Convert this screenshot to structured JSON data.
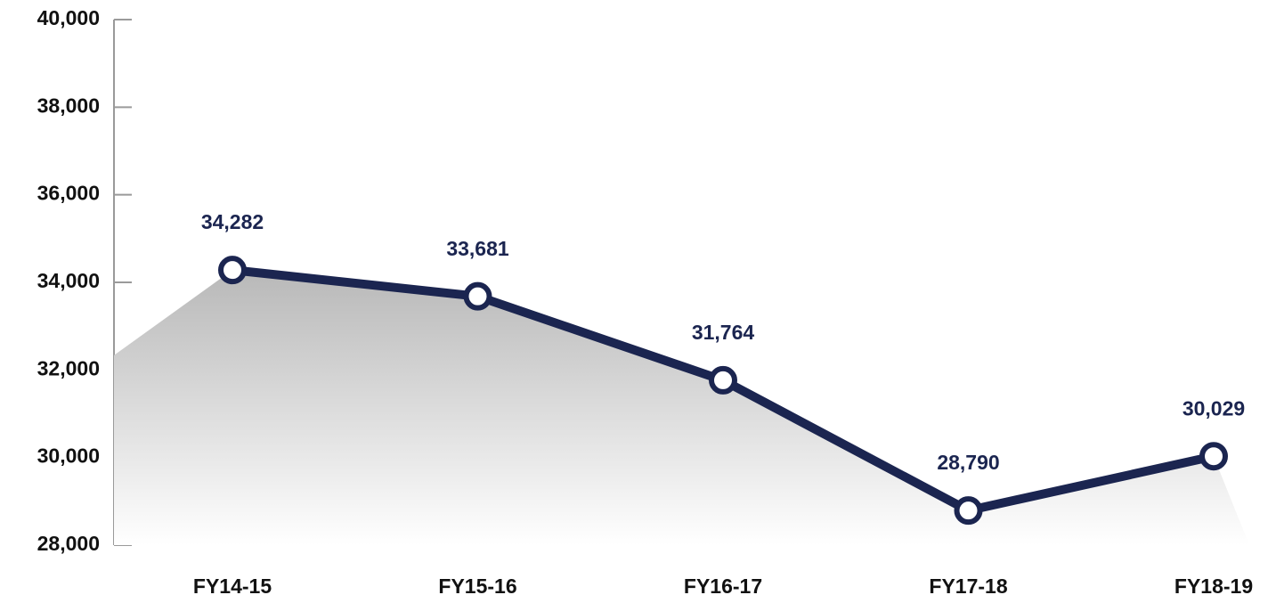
{
  "chart_data": {
    "type": "line",
    "categories": [
      "FY14-15",
      "FY15-16",
      "FY16-17",
      "FY17-18",
      "FY18-19"
    ],
    "series": [
      {
        "name": "Value",
        "color": "#1b2550",
        "values": [
          34282,
          33681,
          31764,
          28790,
          30029
        ],
        "value_labels": [
          "34,282",
          "33,681",
          "31,764",
          "28,790",
          "30,029"
        ]
      }
    ],
    "ylim": [
      28000,
      40000
    ],
    "yticks": [
      {
        "value": 28000,
        "label": "28,000"
      },
      {
        "value": 30000,
        "label": "30,000"
      },
      {
        "value": 32000,
        "label": "32,000"
      },
      {
        "value": 34000,
        "label": "34,000"
      },
      {
        "value": 36000,
        "label": "36,000"
      },
      {
        "value": 38000,
        "label": "38,000"
      },
      {
        "value": 40000,
        "label": "40,000"
      }
    ]
  }
}
